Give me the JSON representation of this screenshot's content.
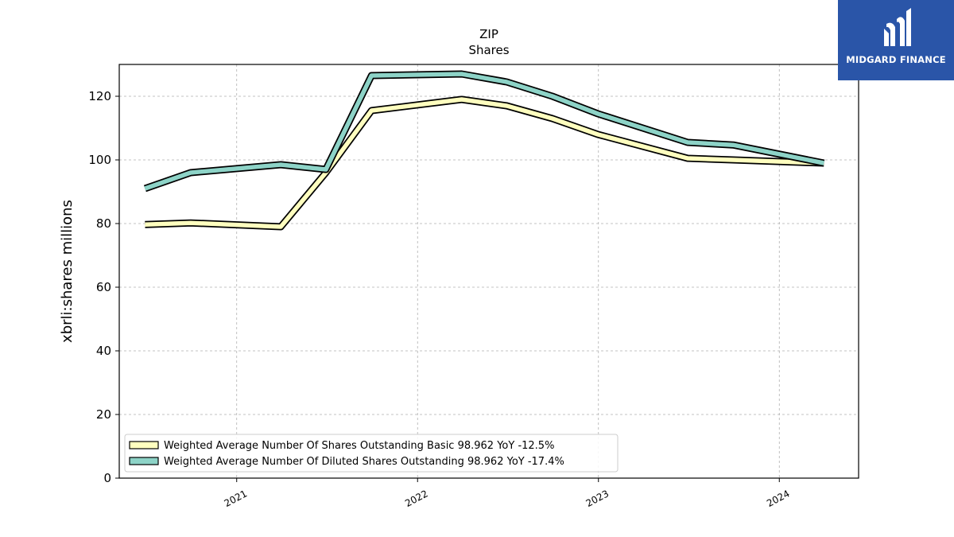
{
  "brand": {
    "name": "MIDGARD FINANCE",
    "logo_color": "#2a55a8"
  },
  "chart_data": {
    "type": "line",
    "title": "ZIP",
    "subtitle": "Shares",
    "xlabel": "",
    "ylabel": "xbrli:shares millions",
    "ylim": [
      0,
      130
    ],
    "yticks": [
      0,
      20,
      40,
      60,
      80,
      100,
      120
    ],
    "xlim": [
      "2020-05-09",
      "2024-06-09"
    ],
    "xticks": [
      {
        "date": "2021-01-01",
        "label": "2021"
      },
      {
        "date": "2022-01-01",
        "label": "2022"
      },
      {
        "date": "2023-01-01",
        "label": "2023"
      },
      {
        "date": "2024-01-01",
        "label": "2024"
      }
    ],
    "grid": true,
    "legend_position": "lower-left",
    "series": [
      {
        "name": "Weighted Average Number Of Shares Outstanding Basic  98.962 YoY -12.5%",
        "color": "#ffffbf",
        "x": [
          "2020-06-30",
          "2020-09-30",
          "2021-03-31",
          "2021-06-30",
          "2021-09-30",
          "2022-03-31",
          "2022-06-30",
          "2022-09-30",
          "2022-12-31",
          "2023-06-30",
          "2023-09-30",
          "2024-03-31"
        ],
        "y": [
          79.7,
          80.2,
          79.0,
          96.0,
          115.5,
          119.0,
          117.0,
          113.0,
          108.0,
          100.5,
          100.0,
          99.0
        ]
      },
      {
        "name": "Weighted Average Number Of Diluted Shares Outstanding  98.962 YoY -17.4%",
        "color": "#8dd3c7",
        "x": [
          "2020-06-30",
          "2020-09-30",
          "2021-03-31",
          "2021-06-30",
          "2021-09-30",
          "2022-03-31",
          "2022-06-30",
          "2022-09-30",
          "2022-12-31",
          "2023-06-30",
          "2023-09-30",
          "2024-03-31"
        ],
        "y": [
          91.0,
          96.0,
          98.5,
          97.0,
          126.5,
          127.0,
          124.5,
          120.0,
          114.5,
          105.5,
          104.7,
          99.0
        ]
      }
    ]
  }
}
